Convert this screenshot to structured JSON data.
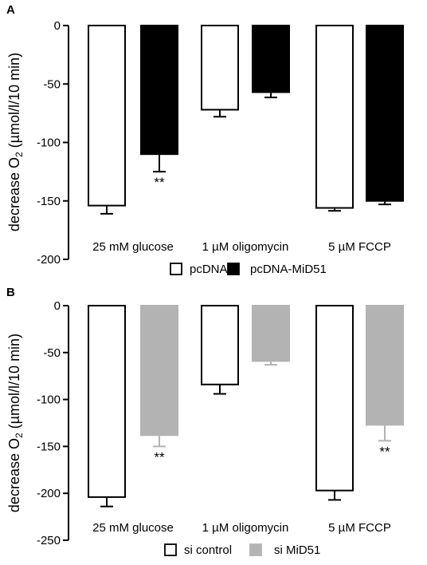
{
  "chart_data": [
    {
      "type": "bar",
      "panel_label": "A",
      "ylabel_main": "decrease O",
      "ylabel_sub": "2",
      "ylabel_unit": " (µmol/l/10 min)",
      "ylim": [
        -200,
        0
      ],
      "yticks": [
        0,
        -50,
        -100,
        -150,
        -200
      ],
      "categories": [
        "25 mM glucose",
        "1 µM oligomycin",
        "5 µM FCCP"
      ],
      "series": [
        {
          "name": "pcDNA",
          "fill": "#ffffff",
          "stroke": "#000000",
          "values": [
            -154,
            -72,
            -156
          ],
          "errors": [
            7,
            6,
            2.5
          ]
        },
        {
          "name": "pcDNA-MiD51",
          "fill": "#000000",
          "stroke": "#000000",
          "values": [
            -110,
            -57,
            -150
          ],
          "errors": [
            15,
            4.5,
            3
          ]
        }
      ],
      "significance": [
        {
          "category": 0,
          "series": 1,
          "label": "**"
        }
      ]
    },
    {
      "type": "bar",
      "panel_label": "B",
      "ylabel_main": "decrease O",
      "ylabel_sub": "2",
      "ylabel_unit": " (µmol/l/10 min)",
      "ylim": [
        -250,
        0
      ],
      "yticks": [
        0,
        -50,
        -100,
        -150,
        -200,
        -250
      ],
      "categories": [
        "25 mM glucose",
        "1 µM oligomycin",
        "5 µM FCCP"
      ],
      "series": [
        {
          "name": "si control",
          "fill": "#ffffff",
          "stroke": "#000000",
          "values": [
            -204,
            -84,
            -197
          ],
          "errors": [
            10,
            10,
            10
          ]
        },
        {
          "name": "si MiD51",
          "fill": "#b3b3b3",
          "stroke": "#b3b3b3",
          "values": [
            -138,
            -59,
            -127
          ],
          "errors": [
            12,
            4,
            17
          ]
        }
      ],
      "significance": [
        {
          "category": 0,
          "series": 1,
          "label": "**"
        },
        {
          "category": 2,
          "series": 1,
          "label": "**"
        }
      ]
    }
  ]
}
